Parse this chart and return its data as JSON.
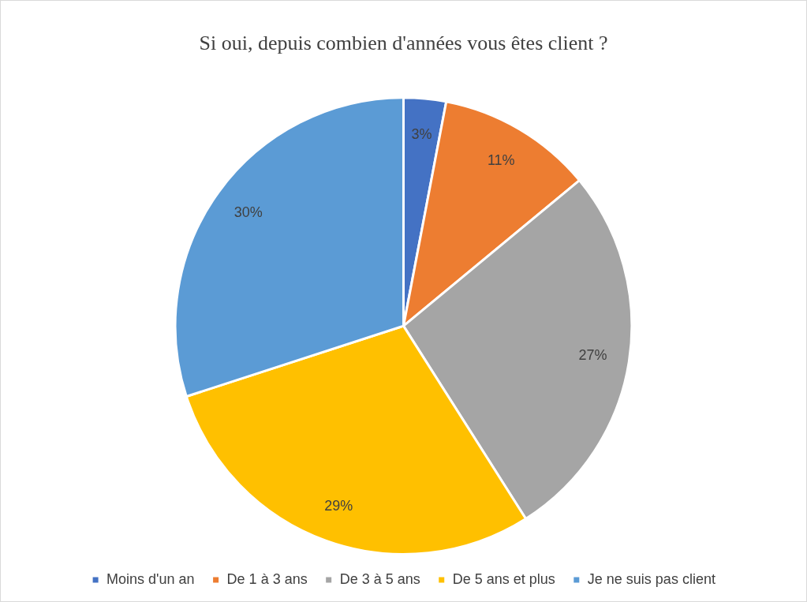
{
  "chart_data": {
    "type": "pie",
    "title": "Si oui, depuis combien d'années vous êtes client ?",
    "categories": [
      "Moins d'un an",
      "De 1 à 3 ans",
      "De 3 à 5 ans",
      "De 5 ans et plus",
      "Je ne suis pas client"
    ],
    "values": [
      3,
      11,
      27,
      29,
      30
    ],
    "colors": [
      "#4472c4",
      "#ed7d31",
      "#a5a5a5",
      "#ffc000",
      "#5b9bd5"
    ],
    "value_labels": [
      "3%",
      "11%",
      "27%",
      "29%",
      "30%"
    ],
    "legend": "bottom"
  }
}
